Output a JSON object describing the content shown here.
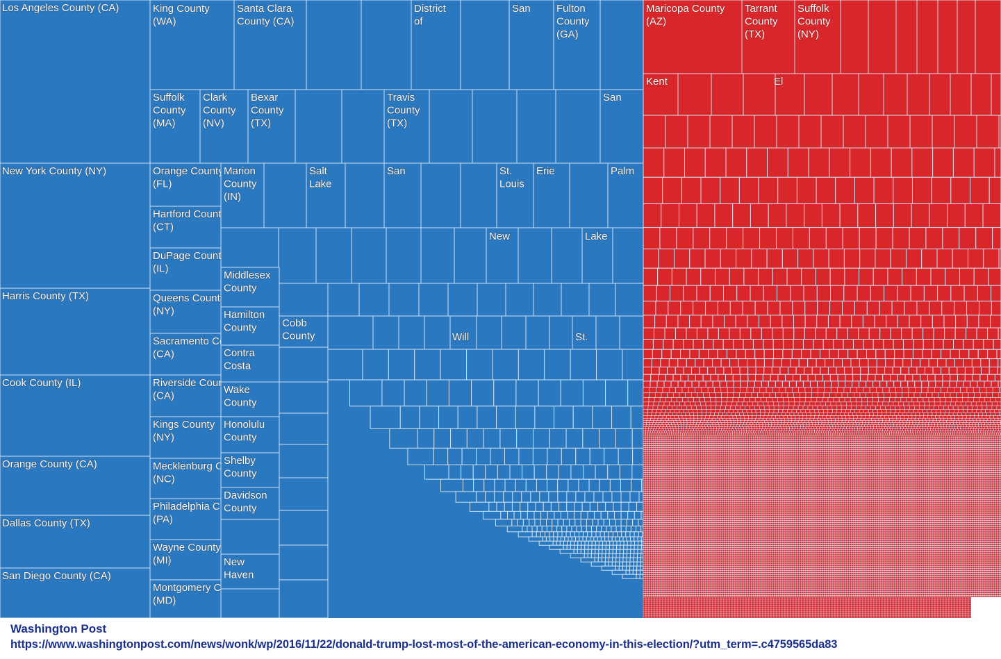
{
  "chart_data": {
    "type": "treemap",
    "colors": {
      "clinton": "#2a78bf",
      "trump": "#d8262b",
      "border": "#cfe0ef"
    },
    "clinton_labels": [
      "Los Angeles County (CA)",
      "New York County (NY)",
      "Harris County (TX)",
      "Cook County (IL)",
      "Orange County (CA)",
      "Dallas County (TX)",
      "San Diego County (CA)",
      "King County (WA)",
      "Santa Clara County (CA)",
      "District of",
      "San",
      "Fulton County (GA)",
      "Suffolk County (MA)",
      "Clark County (NV)",
      "Bexar County (TX)",
      "Travis County (TX)",
      "San",
      "Orange County (FL)",
      "Marion County (IN)",
      "Salt Lake",
      "San",
      "St. Louis",
      "Erie",
      "Palm",
      "Hartford County (CT)",
      "New",
      "Lake",
      "DuPage County (IL)",
      "Middlesex County",
      "Queens County (NY)",
      "Hamilton County",
      "Cobb County",
      "Will",
      "St.",
      "Sacramento County (CA)",
      "Contra Costa",
      "Riverside County (CA)",
      "Wake County",
      "Kings County (NY)",
      "Honolulu County",
      "Shelby County",
      "Mecklenburg County (NC)",
      "Davidson County",
      "Philadelphia County (PA)",
      "Wayne County (MI)",
      "New Haven",
      "Montgomery County (MD)"
    ],
    "trump_labels": [
      "Maricopa County (AZ)",
      "Tarrant County (TX)",
      "Suffolk County (NY)",
      "Kent",
      "El"
    ]
  },
  "source": {
    "name": "Washington Post",
    "url": "https://www.washingtonpost.com/news/wonk/wp/2016/11/22/donald-trump-lost-most-of-the-american-economy-in-this-election/?utm_term=.c4759565da83"
  }
}
